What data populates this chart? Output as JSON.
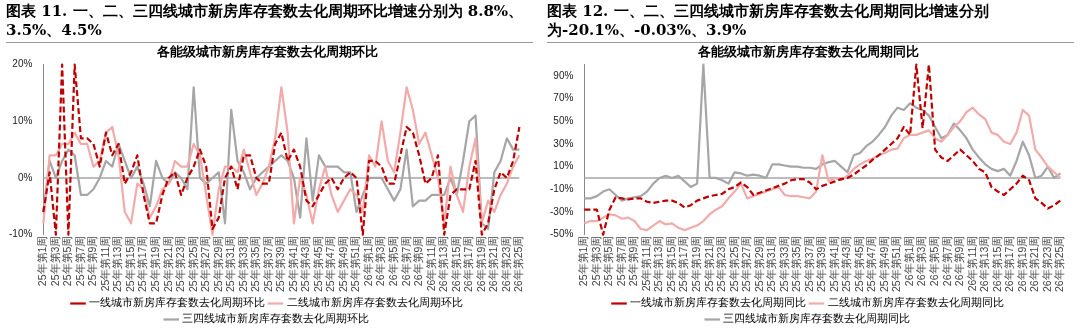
{
  "chart_data": [
    {
      "type": "line",
      "title": "图表 11. 一、二、三四线城市新房库存套数去化周期环比增速分别为 8.8%、3.5%、4.5%",
      "subtitle": "各能级城市新房库存套数去化周期环比",
      "categories": [
        "25年第1周",
        null,
        "25年第3周",
        null,
        "25年第5周",
        null,
        "25年第7周",
        null,
        "25年第9周",
        null,
        "25年第11周",
        null,
        "25年第13周",
        null,
        "25年第15周",
        null,
        "25年第17周",
        null,
        "25年第19周",
        null,
        "25年第21周",
        null,
        "25年第23周",
        null,
        "25年第25周",
        null,
        "25年第27周",
        null,
        "25年第29周",
        null,
        "25年第31周",
        null,
        "25年第33周",
        null,
        "25年第35周",
        null,
        "25年第37周",
        null,
        "25年第39周",
        null,
        "25年第41周",
        null,
        "25年第43周",
        null,
        "25年第45周",
        null,
        "25年第47周",
        null,
        "25年第49周",
        null,
        "25年第51周",
        null,
        "26年第1周",
        null,
        "26年第3周",
        null,
        "26年第5周",
        null,
        "26年第7周",
        null,
        "26年第9周",
        null,
        "26年第11周",
        null,
        "26年第13周",
        null,
        "26年第15周",
        null,
        "26年第17周",
        null,
        "26年第19周",
        null,
        "26年第21周",
        null,
        "26年第23周",
        null,
        "26年第25周"
      ],
      "series": [
        {
          "name": "一线城市新房库存套数去化周期环比",
          "color": "#c00000",
          "line_style": "dashed",
          "values": [
            -6,
            1,
            -10,
            20,
            -10,
            20,
            7,
            7,
            6,
            2,
            8,
            4,
            6,
            -1,
            1,
            4,
            -3,
            -8,
            -8,
            -3,
            0,
            1,
            -3,
            0,
            2,
            5,
            2,
            -9,
            -7,
            0,
            2,
            -2,
            4,
            4,
            0,
            -1,
            -1,
            6,
            8,
            3,
            5,
            2,
            -4,
            -5,
            -3,
            -1,
            0,
            -2,
            0,
            1,
            0,
            -10,
            3,
            3,
            2,
            -1,
            -1,
            4,
            9,
            8,
            4,
            -1,
            0,
            4,
            -10,
            -3,
            -2,
            -2,
            -2,
            3,
            -10,
            -8,
            -2,
            1,
            0,
            3,
            9
          ]
        },
        {
          "name": "二线城市新房库存套数去化周期环比",
          "color": "#f2aaaa",
          "line_style": "solid",
          "values": [
            -8,
            4,
            4,
            6,
            6,
            8,
            6,
            6,
            2,
            3,
            8,
            9,
            4,
            -6,
            -8,
            -1,
            -2,
            -7,
            -5,
            -2,
            -1,
            3,
            2,
            2,
            6,
            4,
            -3,
            -10,
            -2,
            2,
            2,
            1,
            5,
            1,
            -3,
            -1,
            2,
            7,
            16,
            8,
            -8,
            0,
            -3,
            -8,
            -2,
            2,
            -3,
            -6,
            -4,
            -2,
            -3,
            -6,
            4,
            2,
            10,
            3,
            1,
            8,
            16,
            12,
            6,
            8,
            4,
            0,
            -8,
            2,
            -3,
            -6,
            2,
            7,
            -8,
            -4,
            -6,
            -3,
            -1,
            2,
            4
          ]
        },
        {
          "name": "三四线城市新房库存套数去化周期环比",
          "color": "#a6a6a6",
          "line_style": "solid",
          "values": [
            -6,
            3,
            0,
            3,
            5,
            4,
            -3,
            -3,
            -2,
            0,
            3,
            2,
            6,
            3,
            0,
            2,
            -1,
            -5,
            3,
            0,
            -1,
            1,
            0,
            -2,
            16,
            0,
            -1,
            0,
            1,
            -8,
            12,
            3,
            1,
            -2,
            0,
            1,
            2,
            3,
            4,
            3,
            0,
            -7,
            7,
            -4,
            4,
            2,
            2,
            2,
            1,
            1,
            -6,
            -3,
            0,
            0,
            0,
            -2,
            -4,
            -2,
            5,
            -5,
            -4,
            -4,
            -3,
            -3,
            -3,
            0,
            -3,
            3,
            10,
            11,
            -8,
            -9,
            1,
            3,
            7,
            5,
            5
          ]
        }
      ],
      "ylim": [
        -10,
        20
      ],
      "yticks": [
        {
          "value": -10,
          "label": "-10%"
        },
        {
          "value": 0,
          "label": "0%"
        },
        {
          "value": 10,
          "label": "10%"
        },
        {
          "value": 20,
          "label": "20%"
        }
      ],
      "ref_lines": [
        {
          "axis": "y",
          "value": 0,
          "color": "#a6a6a6"
        }
      ],
      "grid": false,
      "legend": "bottom"
    },
    {
      "type": "line",
      "title": "图表 12. 一、二、三四线城市新房库存套数去化周期同比增速分别为-20.1%、-0.03%、3.9%",
      "subtitle": "各能级城市新房库存套数去化周期同比",
      "categories": [
        "25年第1周",
        null,
        "25年第3周",
        null,
        "25年第5周",
        null,
        "25年第7周",
        null,
        "25年第9周",
        null,
        "25年第11周",
        null,
        "25年第13周",
        null,
        "25年第15周",
        null,
        "25年第17周",
        null,
        "25年第19周",
        null,
        "25年第21周",
        null,
        "25年第23周",
        null,
        "25年第25周",
        null,
        "25年第27周",
        null,
        "25年第29周",
        null,
        "25年第31周",
        null,
        "25年第33周",
        null,
        "25年第35周",
        null,
        "25年第37周",
        null,
        "25年第39周",
        null,
        "25年第41周",
        null,
        "25年第43周",
        null,
        "25年第45周",
        null,
        "25年第47周",
        null,
        "25年第49周",
        null,
        "25年第51周",
        null,
        "26年第1周",
        null,
        "26年第3周",
        null,
        "26年第5周",
        null,
        "26年第7周",
        null,
        "26年第9周",
        null,
        "26年第11周",
        null,
        "26年第13周",
        null,
        "26年第15周",
        null,
        "26年第17周",
        null,
        "26年第19周",
        null,
        "26年第21周",
        null,
        "26年第23周",
        null,
        "26年第25周"
      ],
      "series": [
        {
          "name": "一线城市新房库存套数去化周期同比",
          "color": "#c00000",
          "line_style": "dashed",
          "values": [
            -28,
            -28,
            -28,
            -50,
            -28,
            -17,
            -18,
            -19,
            -18,
            -18,
            -21,
            -22,
            -21,
            -20,
            -20,
            -22,
            -26,
            -24,
            -20,
            -18,
            -16,
            -15,
            -14,
            -10,
            -8,
            -4,
            -8,
            -15,
            -13,
            -11,
            -9,
            -7,
            -5,
            -2,
            -1,
            -1,
            -4,
            -10,
            -7,
            -5,
            -3,
            -1,
            0,
            3,
            7,
            11,
            16,
            20,
            25,
            30,
            35,
            45,
            38,
            100,
            44,
            100,
            25,
            18,
            15,
            20,
            25,
            20,
            15,
            8,
            5,
            -8,
            -12,
            -15,
            -10,
            -5,
            2,
            -2,
            -18,
            -22,
            -27,
            -24,
            -20
          ]
        },
        {
          "name": "二线城市新房库存套数去化周期同比",
          "color": "#f2aaaa",
          "line_style": "solid",
          "values": [
            -40,
            -38,
            -38,
            -35,
            -32,
            -33,
            -36,
            -35,
            -38,
            -45,
            -46,
            -42,
            -38,
            -41,
            -40,
            -44,
            -46,
            -44,
            -42,
            -38,
            -32,
            -28,
            -25,
            -18,
            -12,
            -5,
            -18,
            -16,
            -14,
            -12,
            -10,
            -8,
            -15,
            -16,
            -16,
            -17,
            -18,
            -12,
            20,
            -3,
            0,
            -2,
            2,
            8,
            12,
            15,
            17,
            20,
            22,
            25,
            26,
            35,
            38,
            38,
            40,
            42,
            35,
            32,
            38,
            45,
            50,
            58,
            62,
            56,
            52,
            40,
            38,
            32,
            30,
            40,
            60,
            55,
            25,
            18,
            10,
            5,
            0
          ]
        },
        {
          "name": "三四线城市新房库存套数去化周期同比",
          "color": "#a6a6a6",
          "line_style": "solid",
          "values": [
            -18,
            -18,
            -16,
            -12,
            -10,
            -15,
            -20,
            -18,
            -17,
            -16,
            -12,
            -5,
            0,
            2,
            0,
            2,
            -3,
            -8,
            -5,
            100,
            0,
            0,
            -2,
            -5,
            5,
            4,
            2,
            3,
            2,
            0,
            12,
            12,
            11,
            10,
            10,
            9,
            9,
            8,
            12,
            14,
            15,
            10,
            5,
            20,
            22,
            28,
            32,
            38,
            45,
            55,
            62,
            60,
            66,
            62,
            60,
            55,
            45,
            35,
            38,
            48,
            42,
            35,
            25,
            18,
            12,
            8,
            6,
            8,
            2,
            15,
            32,
            20,
            0,
            2,
            10,
            0,
            4
          ]
        }
      ],
      "ylim": [
        -50,
        100
      ],
      "yticks": [
        {
          "value": -50,
          "label": "-50%"
        },
        {
          "value": -30,
          "label": "-30%"
        },
        {
          "value": -10,
          "label": "-10%"
        },
        {
          "value": 10,
          "label": "10%"
        },
        {
          "value": 30,
          "label": "30%"
        },
        {
          "value": 50,
          "label": "50%"
        },
        {
          "value": 70,
          "label": "70%"
        },
        {
          "value": 90,
          "label": "90%"
        }
      ],
      "ref_lines": [
        {
          "axis": "y",
          "value": 0,
          "color": "#a6a6a6"
        }
      ],
      "grid": false,
      "legend": "bottom"
    }
  ]
}
